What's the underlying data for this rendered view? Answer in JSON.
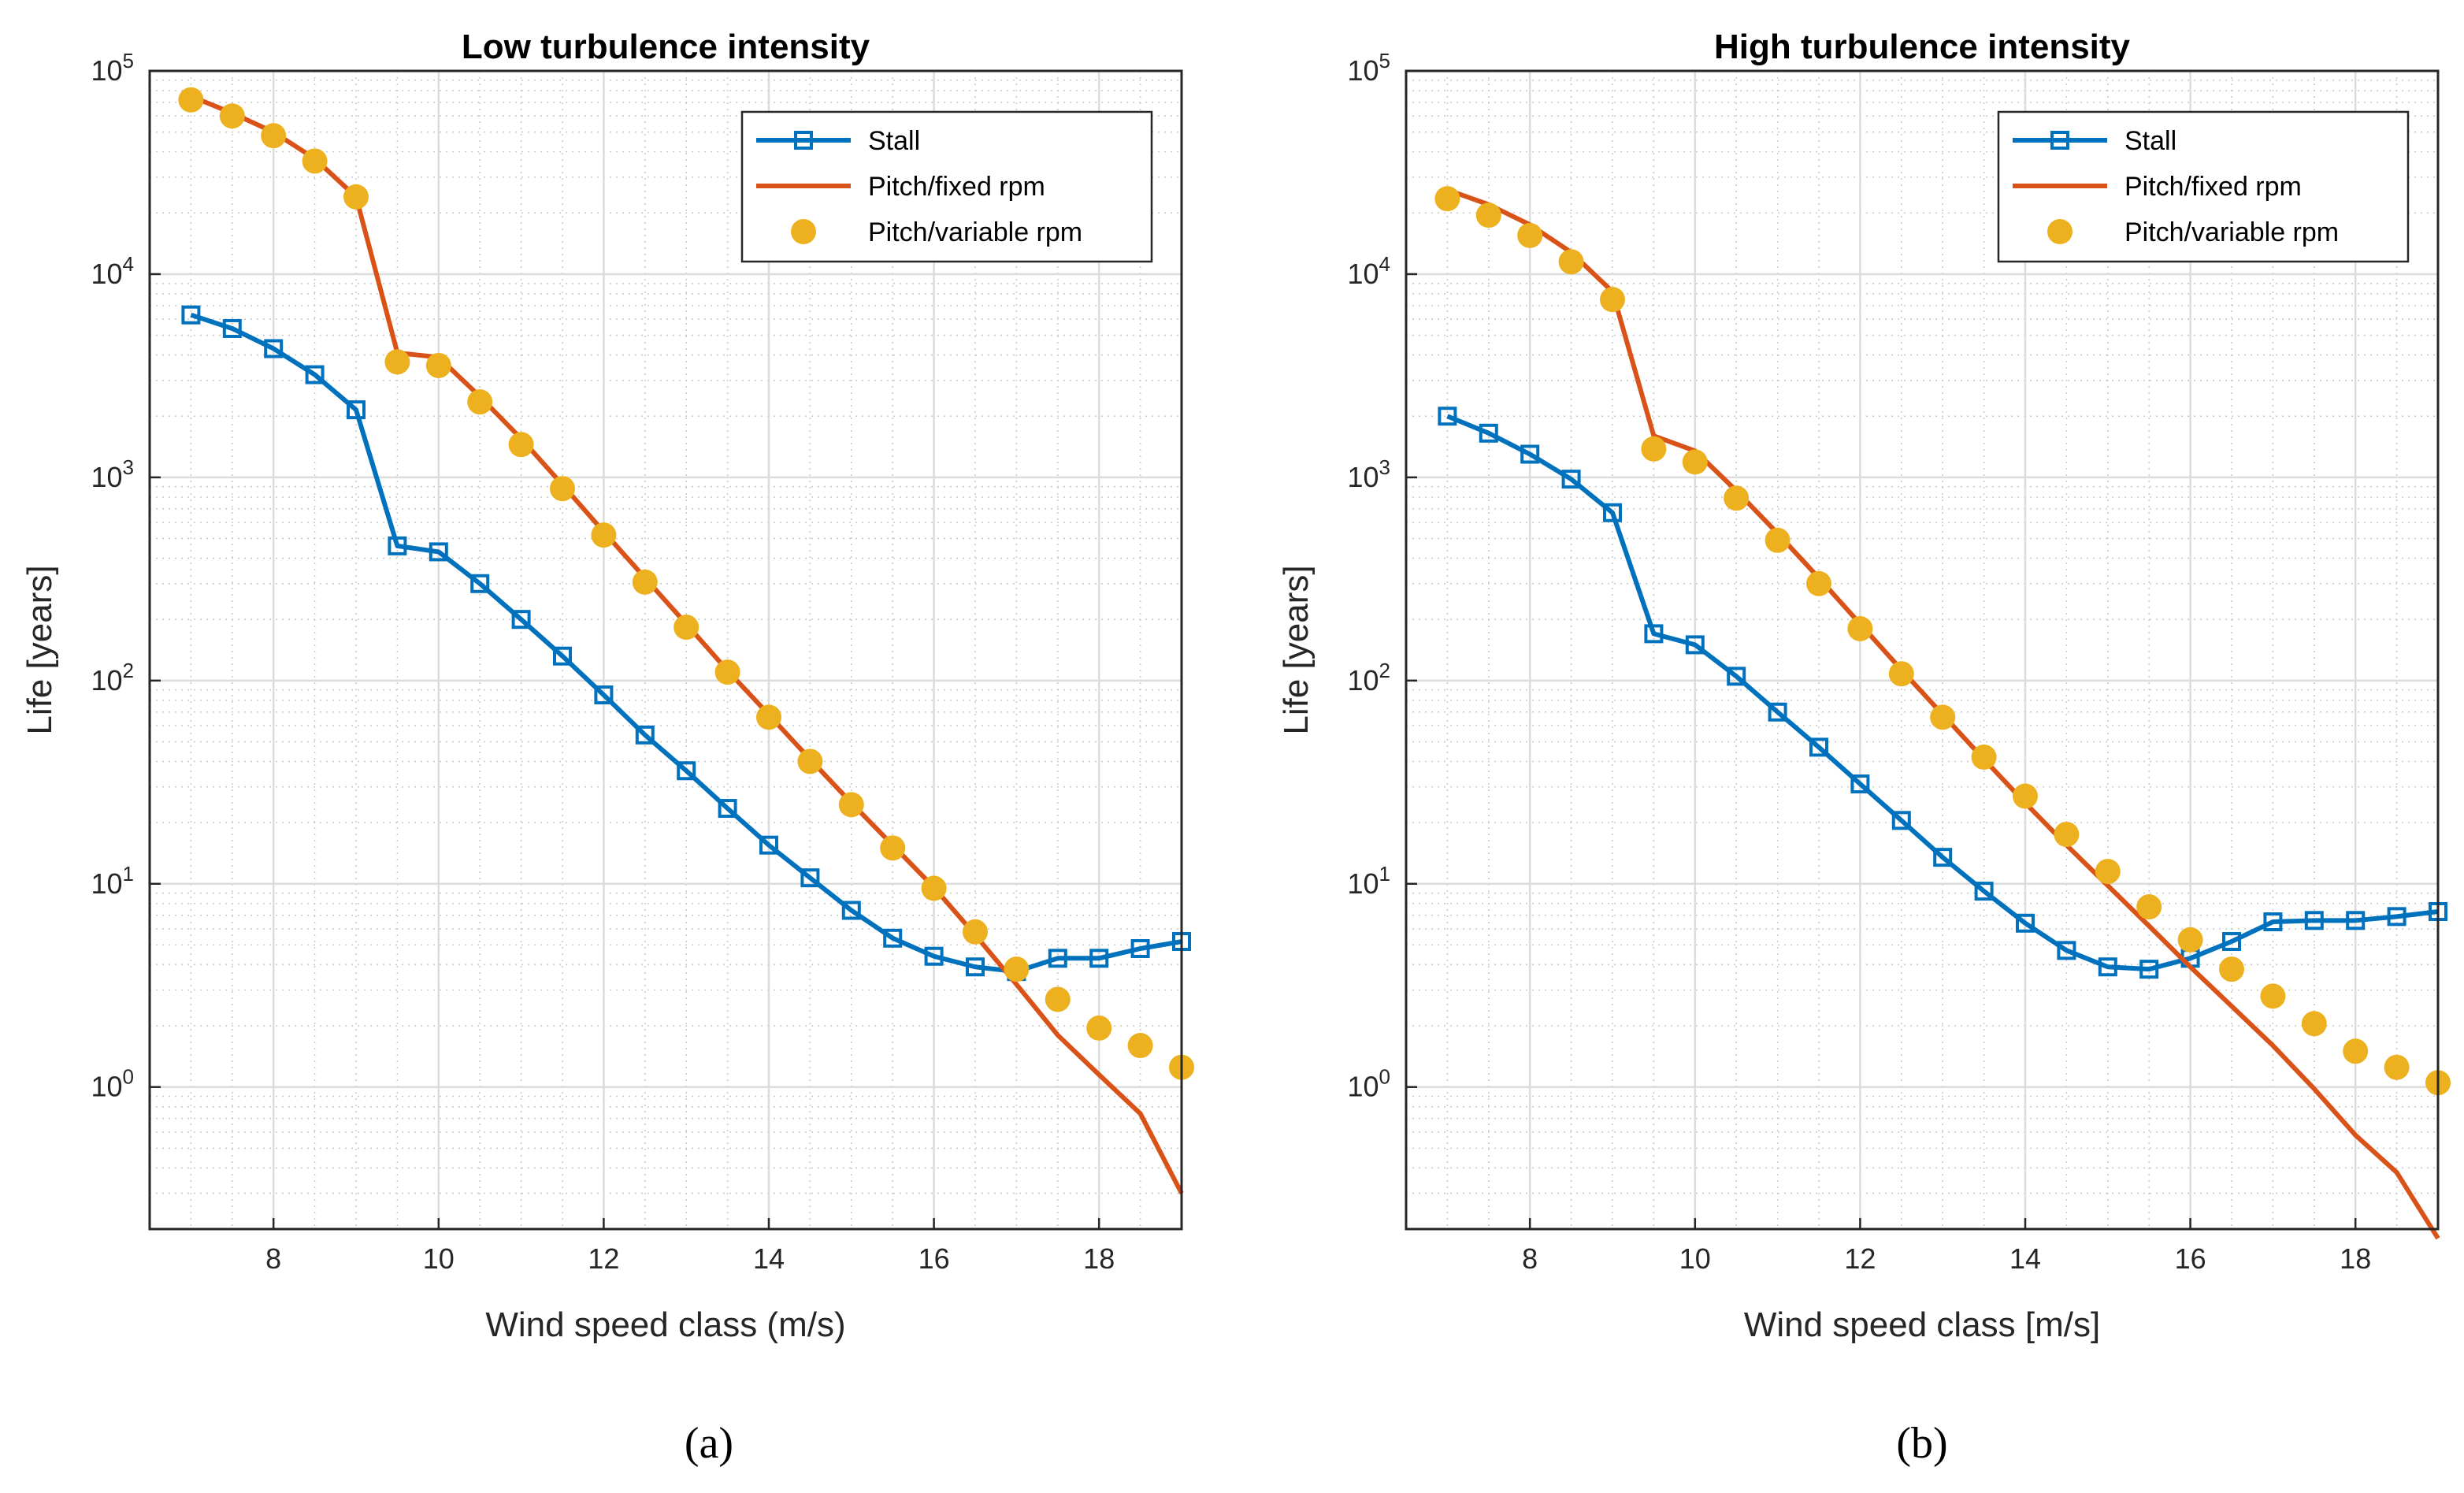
{
  "captions": [
    "(a)",
    "(b)"
  ],
  "colors": {
    "stall": "#0072BD",
    "pitch_fixed": "#D95319",
    "pitch_variable": "#EDB120"
  },
  "chart_data": [
    {
      "type": "line",
      "title": "Low turbulence intensity",
      "xlabel": "Wind speed class (m/s)",
      "ylabel": "Life [years]",
      "yscale": "log",
      "xlim": [
        6.5,
        19
      ],
      "ylim": [
        0.2,
        100000
      ],
      "xticks": [
        8,
        10,
        12,
        14,
        16,
        18
      ],
      "yticks": [
        {
          "value": 1,
          "base": "10",
          "exp": "0"
        },
        {
          "value": 10,
          "base": "10",
          "exp": "1"
        },
        {
          "value": 100,
          "base": "10",
          "exp": "2"
        },
        {
          "value": 1000,
          "base": "10",
          "exp": "3"
        },
        {
          "value": 10000,
          "base": "10",
          "exp": "4"
        },
        {
          "value": 100000,
          "base": "10",
          "exp": "5"
        }
      ],
      "grid": true,
      "legend_position": "top-right",
      "x": [
        7,
        7.5,
        8,
        8.5,
        9,
        9.5,
        10,
        10.5,
        11,
        11.5,
        12,
        12.5,
        13,
        13.5,
        14,
        14.5,
        15,
        15.5,
        16,
        16.5,
        17,
        17.5,
        18,
        18.5,
        19
      ],
      "series": [
        {
          "name": "Stall",
          "style": "line-square",
          "values": [
            6300,
            5400,
            4300,
            3200,
            2150,
            460,
            430,
            300,
            200,
            132,
            85,
            54,
            36,
            23.5,
            15.5,
            10.7,
            7.4,
            5.4,
            4.4,
            3.9,
            3.7,
            4.3,
            4.3,
            4.8,
            5.2
          ]
        },
        {
          "name": "Pitch/fixed rpm",
          "style": "line",
          "values": [
            75000,
            62000,
            50000,
            37000,
            24000,
            4100,
            3900,
            2500,
            1550,
            920,
            540,
            320,
            190,
            112,
            68,
            41,
            25,
            15.5,
            9.6,
            5.6,
            3.2,
            1.8,
            1.15,
            0.74,
            0.3
          ]
        },
        {
          "name": "Pitch/variable rpm",
          "style": "marker",
          "values": [
            72000,
            60000,
            48000,
            36000,
            24000,
            3700,
            3550,
            2350,
            1450,
            880,
            520,
            305,
            183,
            110,
            66,
            40,
            24.5,
            15,
            9.5,
            5.8,
            3.8,
            2.7,
            1.95,
            1.6,
            1.25
          ]
        }
      ]
    },
    {
      "type": "line",
      "title": "High turbulence intensity",
      "xlabel": "Wind speed class [m/s]",
      "ylabel": "Life [years]",
      "yscale": "log",
      "xlim": [
        6.5,
        19
      ],
      "ylim": [
        0.2,
        100000
      ],
      "xticks": [
        8,
        10,
        12,
        14,
        16,
        18
      ],
      "yticks": [
        {
          "value": 1,
          "base": "10",
          "exp": "0"
        },
        {
          "value": 10,
          "base": "10",
          "exp": "1"
        },
        {
          "value": 100,
          "base": "10",
          "exp": "2"
        },
        {
          "value": 1000,
          "base": "10",
          "exp": "3"
        },
        {
          "value": 10000,
          "base": "10",
          "exp": "4"
        },
        {
          "value": 100000,
          "base": "10",
          "exp": "5"
        }
      ],
      "grid": true,
      "legend_position": "top-right",
      "x": [
        7,
        7.5,
        8,
        8.5,
        9,
        9.5,
        10,
        10.5,
        11,
        11.5,
        12,
        12.5,
        13,
        13.5,
        14,
        14.5,
        15,
        15.5,
        16,
        16.5,
        17,
        17.5,
        18,
        18.5,
        19
      ],
      "series": [
        {
          "name": "Stall",
          "style": "line-square",
          "values": [
            2000,
            1650,
            1300,
            980,
            670,
            170,
            150,
            105,
            70,
            47,
            31,
            20.5,
            13.5,
            9.2,
            6.4,
            4.7,
            3.9,
            3.8,
            4.3,
            5.2,
            6.5,
            6.6,
            6.6,
            6.9,
            7.3
          ]
        },
        {
          "name": "Pitch/fixed rpm",
          "style": "line",
          "values": [
            26000,
            22000,
            17500,
            12800,
            8200,
            1600,
            1350,
            860,
            530,
            320,
            190,
            113,
            68,
            41,
            25,
            15.5,
            9.8,
            6.2,
            3.9,
            2.5,
            1.6,
            0.98,
            0.58,
            0.38,
            0.18
          ]
        },
        {
          "name": "Pitch/variable rpm",
          "style": "marker",
          "values": [
            23500,
            19500,
            15500,
            11500,
            7500,
            1380,
            1190,
            790,
            490,
            300,
            180,
            108,
            66,
            42,
            27,
            17.5,
            11.5,
            7.7,
            5.3,
            3.8,
            2.8,
            2.05,
            1.5,
            1.25,
            1.05
          ]
        }
      ]
    }
  ]
}
